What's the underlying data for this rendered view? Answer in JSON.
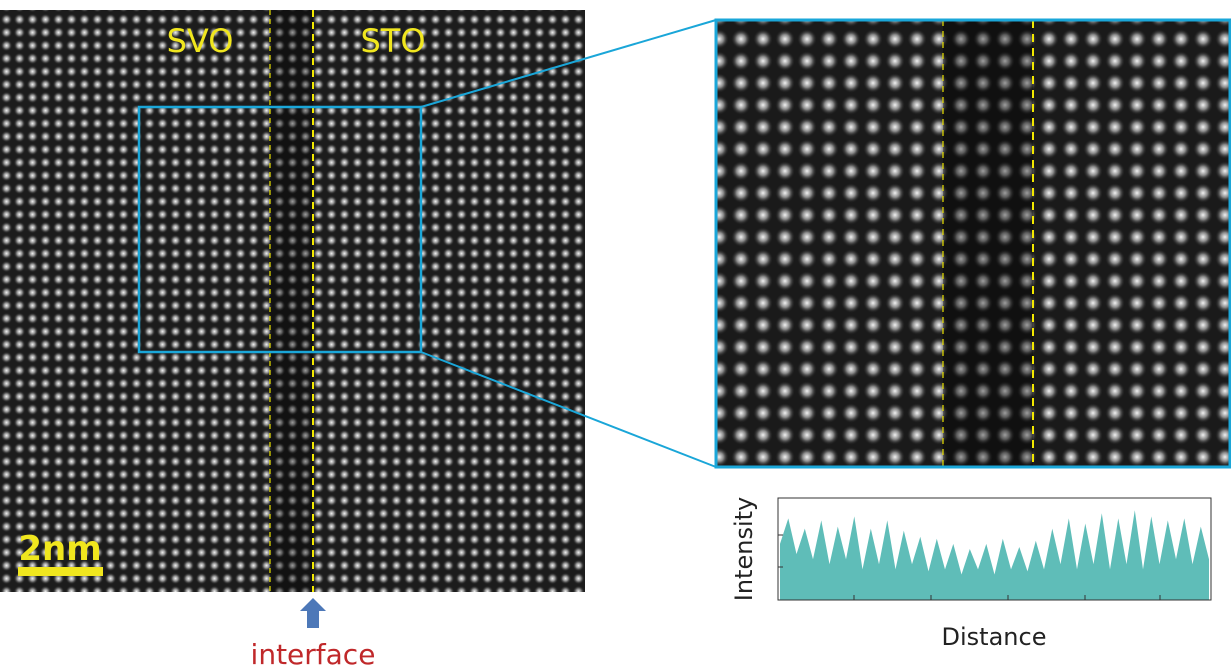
{
  "left_image": {
    "labels": [
      "SVO",
      "STO"
    ],
    "scale_bar": "2nm",
    "arrow_label": "interface"
  },
  "chart_data": {
    "type": "area",
    "x_label": "Distance",
    "y_label": "Intensity",
    "color": "#5fbdb8",
    "ylim": [
      0,
      1
    ],
    "values": [
      0.55,
      0.8,
      0.45,
      0.7,
      0.4,
      0.78,
      0.35,
      0.72,
      0.4,
      0.82,
      0.3,
      0.7,
      0.35,
      0.78,
      0.3,
      0.68,
      0.35,
      0.62,
      0.28,
      0.6,
      0.3,
      0.55,
      0.25,
      0.5,
      0.3,
      0.55,
      0.25,
      0.6,
      0.3,
      0.52,
      0.28,
      0.58,
      0.3,
      0.7,
      0.35,
      0.8,
      0.3,
      0.75,
      0.35,
      0.85,
      0.3,
      0.8,
      0.35,
      0.88,
      0.3,
      0.82,
      0.35,
      0.78,
      0.4,
      0.8,
      0.35,
      0.72,
      0.4
    ]
  }
}
